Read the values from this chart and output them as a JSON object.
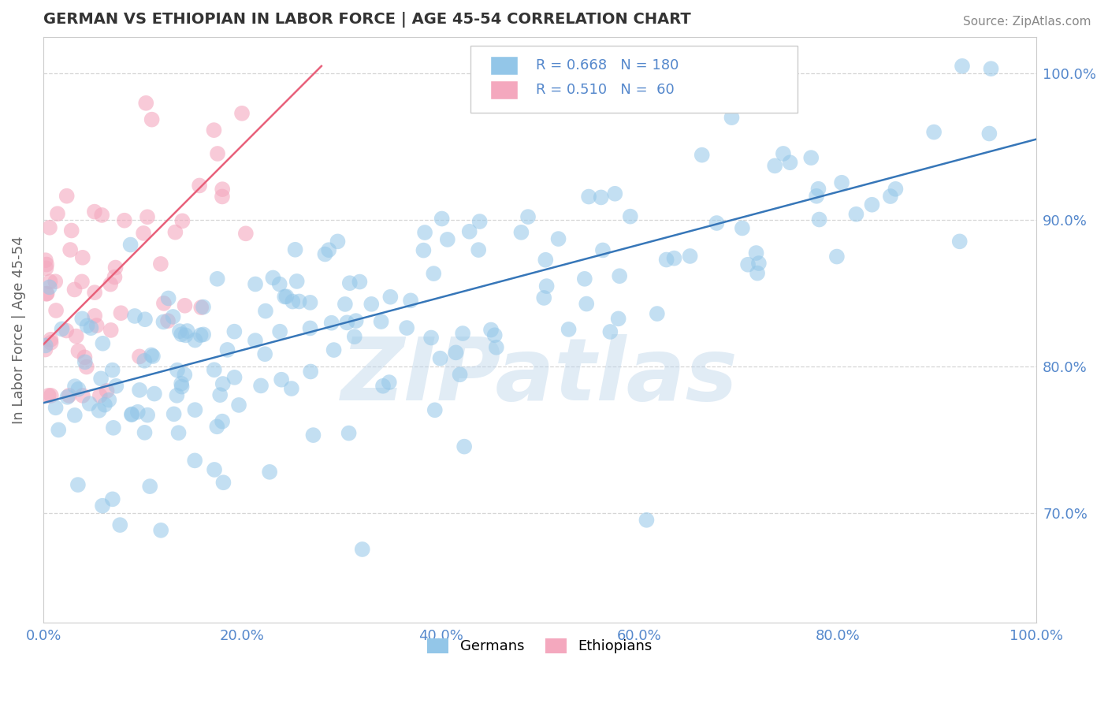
{
  "title": "GERMAN VS ETHIOPIAN IN LABOR FORCE | AGE 45-54 CORRELATION CHART",
  "source": "Source: ZipAtlas.com",
  "xlabel": "",
  "ylabel": "In Labor Force | Age 45-54",
  "xlim": [
    0.0,
    1.0
  ],
  "ylim": [
    0.625,
    1.025
  ],
  "xticks": [
    0.0,
    0.2,
    0.4,
    0.6,
    0.8,
    1.0
  ],
  "xtick_labels": [
    "0.0%",
    "20.0%",
    "40.0%",
    "60.0%",
    "80.0%",
    "100.0%"
  ],
  "yticks": [
    0.7,
    0.8,
    0.9,
    1.0
  ],
  "ytick_labels": [
    "70.0%",
    "80.0%",
    "90.0%",
    "100.0%"
  ],
  "blue_color": "#93c6e8",
  "pink_color": "#f4a8be",
  "blue_line_color": "#3676b8",
  "pink_line_color": "#e8607a",
  "blue_R": 0.668,
  "blue_N": 180,
  "pink_R": 0.51,
  "pink_N": 60,
  "watermark": "ZIPatlas",
  "watermark_blue": "#bdd5ea",
  "watermark_gray": "#aaaaaa",
  "background_color": "#ffffff",
  "grid_color": "#cccccc",
  "title_color": "#333333",
  "axis_label_color": "#666666",
  "tick_label_color": "#5588cc",
  "blue_line_x0": 0.0,
  "blue_line_y0": 0.775,
  "blue_line_x1": 1.0,
  "blue_line_y1": 0.955,
  "pink_line_x0": 0.0,
  "pink_line_y0": 0.815,
  "pink_line_x1": 0.28,
  "pink_line_y1": 1.005
}
